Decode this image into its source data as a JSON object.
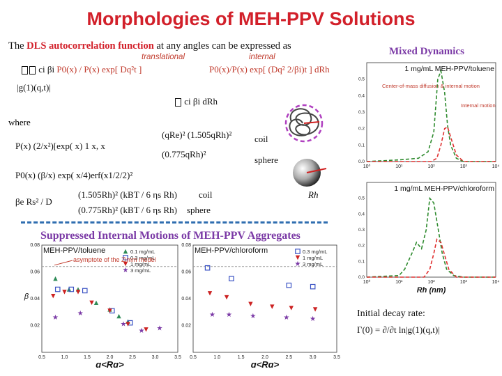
{
  "title": "Morphologies of MEH-PPV Solutions",
  "intro": {
    "prefix": "The ",
    "highlight": "DLS autocorrelation function",
    "suffix": " at any angles can be expressed as",
    "translational_tag": "translational",
    "internal_tag": "internal"
  },
  "equations": {
    "g1_lhs": "|g(1)(q,t)|",
    "g1_mid": "ci βi",
    "g1_trans": "P0(x) / P(x)  exp[ Dq²t ]",
    "g1_int": "P0(x)/P(x) exp[ (Dq² 2/βi)t ] dRh",
    "g1_tail": "ci βi dRh",
    "where": "where",
    "P_def": "P(x)  (2/x²)[exp( x)  1  x, x",
    "P_coil_top": "(qRe)²  (1.505qRh)²",
    "P_sphere": "(0.775qRh)²",
    "coil": "coil",
    "sphere": "sphere",
    "P0_def": "P0(x)  (β/x) exp( x/4)erf(x1/2/2)²",
    "beta_lhs": "βe  Rs² / D",
    "beta_coil": "(1.505Rh)² (kBT / 6 ηs Rh)",
    "beta_sphere": "(0.775Rh)² (kBT / 6 ηs Rh)",
    "coil2": "coil",
    "sphere2": "sphere",
    "rh_label": "Rh"
  },
  "suppressed_title": "Suppressed Internal Motions of MEH-PPV Aggregates",
  "mixed_title": "Mixed Dynamics",
  "decay": {
    "label": "Initial decay rate:",
    "eq": "Γ(0) =  ∂/∂t ln|g(1)(q,t)|"
  },
  "chart_data": [
    {
      "type": "scatter",
      "panel_label": "MEH-PPV/toluene",
      "annotation": "asymptote of the Zimm model",
      "xlabel": "q<Rg>",
      "ylabel": "β",
      "xlim": [
        0.5,
        3.5
      ],
      "ylim": [
        0.0,
        0.08
      ],
      "xticks": [
        "0.5",
        "1.0",
        "1.5",
        "2.0",
        "2.5",
        "3.0",
        "3.5"
      ],
      "yticks": [
        "0.02",
        "0.04",
        "0.06",
        "0.08"
      ],
      "asymptote": 0.064,
      "series": [
        {
          "name": "0.1 mg/mL",
          "marker": "triangle",
          "color": "#2e8b57",
          "x": [
            0.8,
            1.1,
            1.3,
            1.7,
            2.0,
            2.2,
            2.4
          ],
          "y": [
            0.055,
            0.047,
            0.047,
            0.037,
            0.032,
            0.027,
            0.023
          ]
        },
        {
          "name": "0.3 mg/mL",
          "marker": "square",
          "color": "#3a52c4",
          "x": [
            0.85,
            1.15,
            1.45,
            2.05,
            2.45
          ],
          "y": [
            0.047,
            0.047,
            0.046,
            0.031,
            0.022
          ]
        },
        {
          "name": "1 mg/mL",
          "marker": "triangle-down",
          "color": "#cc2222",
          "x": [
            0.75,
            1.0,
            1.3,
            1.6,
            2.0,
            2.4,
            2.8
          ],
          "y": [
            0.042,
            0.045,
            0.045,
            0.037,
            0.031,
            0.021,
            0.017
          ]
        },
        {
          "name": "3 mg/mL",
          "marker": "star",
          "color": "#7b3aa6",
          "x": [
            0.8,
            1.35,
            2.3,
            2.7,
            3.1
          ],
          "y": [
            0.026,
            0.029,
            0.021,
            0.016,
            0.018
          ]
        }
      ]
    },
    {
      "type": "scatter",
      "panel_label": "MEH-PPV/chloroform",
      "xlabel": "q<Rg>",
      "xlim": [
        0.5,
        3.5
      ],
      "ylim": [
        0.0,
        0.08
      ],
      "xticks": [
        "0.5",
        "1.0",
        "1.5",
        "2.0",
        "2.5",
        "3.0",
        "3.5"
      ],
      "yticks": [
        "0.02",
        "0.04",
        "0.06",
        "0.08"
      ],
      "asymptote": 0.064,
      "series": [
        {
          "name": "0.3 mg/mL",
          "marker": "square",
          "color": "#3a52c4",
          "x": [
            0.8,
            1.3,
            2.5,
            3.0
          ],
          "y": [
            0.063,
            0.055,
            0.05,
            0.049
          ]
        },
        {
          "name": "1 mg/mL",
          "marker": "triangle-down",
          "color": "#cc2222",
          "x": [
            0.85,
            1.2,
            1.7,
            2.15,
            2.55,
            3.05
          ],
          "y": [
            0.044,
            0.041,
            0.036,
            0.034,
            0.033,
            0.032
          ]
        },
        {
          "name": "3 mg/mL",
          "marker": "star",
          "color": "#7b3aa6",
          "x": [
            0.9,
            1.25,
            1.75,
            2.45,
            3.0
          ],
          "y": [
            0.028,
            0.028,
            0.027,
            0.026,
            0.025
          ]
        }
      ]
    },
    {
      "type": "line",
      "panel_label": "1 mg/mL MEH-PPV/toluene",
      "annotations": [
        "Center-of-mass diffusion & internal motion",
        "Internal motion"
      ],
      "xscale": "log",
      "xlim": [
        1,
        10000
      ],
      "ylim": [
        0.0,
        0.6
      ],
      "xticks": [
        "10⁰",
        "10¹",
        "10²",
        "10³",
        "10⁴"
      ],
      "yticks": [
        "0.0",
        "0.1",
        "0.2",
        "0.3",
        "0.4",
        "0.5"
      ],
      "series": [
        {
          "color": "#2e8b2e",
          "style": "dashed",
          "x": [
            1,
            10,
            40,
            80,
            120,
            160,
            200,
            260,
            320,
            400,
            600,
            1000,
            10000
          ],
          "y": [
            0.0,
            0.01,
            0.02,
            0.06,
            0.18,
            0.5,
            0.55,
            0.42,
            0.22,
            0.1,
            0.02,
            0.0,
            0.0
          ]
        },
        {
          "color": "#e03030",
          "style": "dashed",
          "x": [
            1,
            100,
            150,
            200,
            260,
            320,
            400,
            600,
            1000,
            10000
          ],
          "y": [
            0.0,
            0.0,
            0.02,
            0.1,
            0.2,
            0.21,
            0.15,
            0.04,
            0.0,
            0.0
          ]
        }
      ]
    },
    {
      "type": "line",
      "panel_label": "1 mg/mL MEH-PPV/chloroform",
      "xscale": "log",
      "xlabel": "Rh (nm)",
      "xlim": [
        1,
        10000
      ],
      "ylim": [
        0.0,
        0.6
      ],
      "xticks": [
        "10⁰",
        "10¹",
        "10²",
        "10³",
        "10⁴"
      ],
      "yticks": [
        "0.0",
        "0.1",
        "0.2",
        "0.3",
        "0.4",
        "0.5"
      ],
      "series": [
        {
          "color": "#2e8b2e",
          "style": "dashed",
          "x": [
            1,
            10,
            15,
            25,
            35,
            50,
            70,
            90,
            120,
            160,
            220,
            300,
            500,
            1000,
            10000
          ],
          "y": [
            0.0,
            0.01,
            0.05,
            0.15,
            0.22,
            0.18,
            0.3,
            0.5,
            0.47,
            0.32,
            0.15,
            0.05,
            0.01,
            0.0,
            0.0
          ]
        },
        {
          "color": "#e03030",
          "style": "dashed",
          "x": [
            1,
            60,
            90,
            120,
            150,
            200,
            260,
            350,
            600,
            10000
          ],
          "y": [
            0.0,
            0.0,
            0.05,
            0.15,
            0.24,
            0.22,
            0.14,
            0.05,
            0.0,
            0.0
          ]
        }
      ]
    }
  ]
}
